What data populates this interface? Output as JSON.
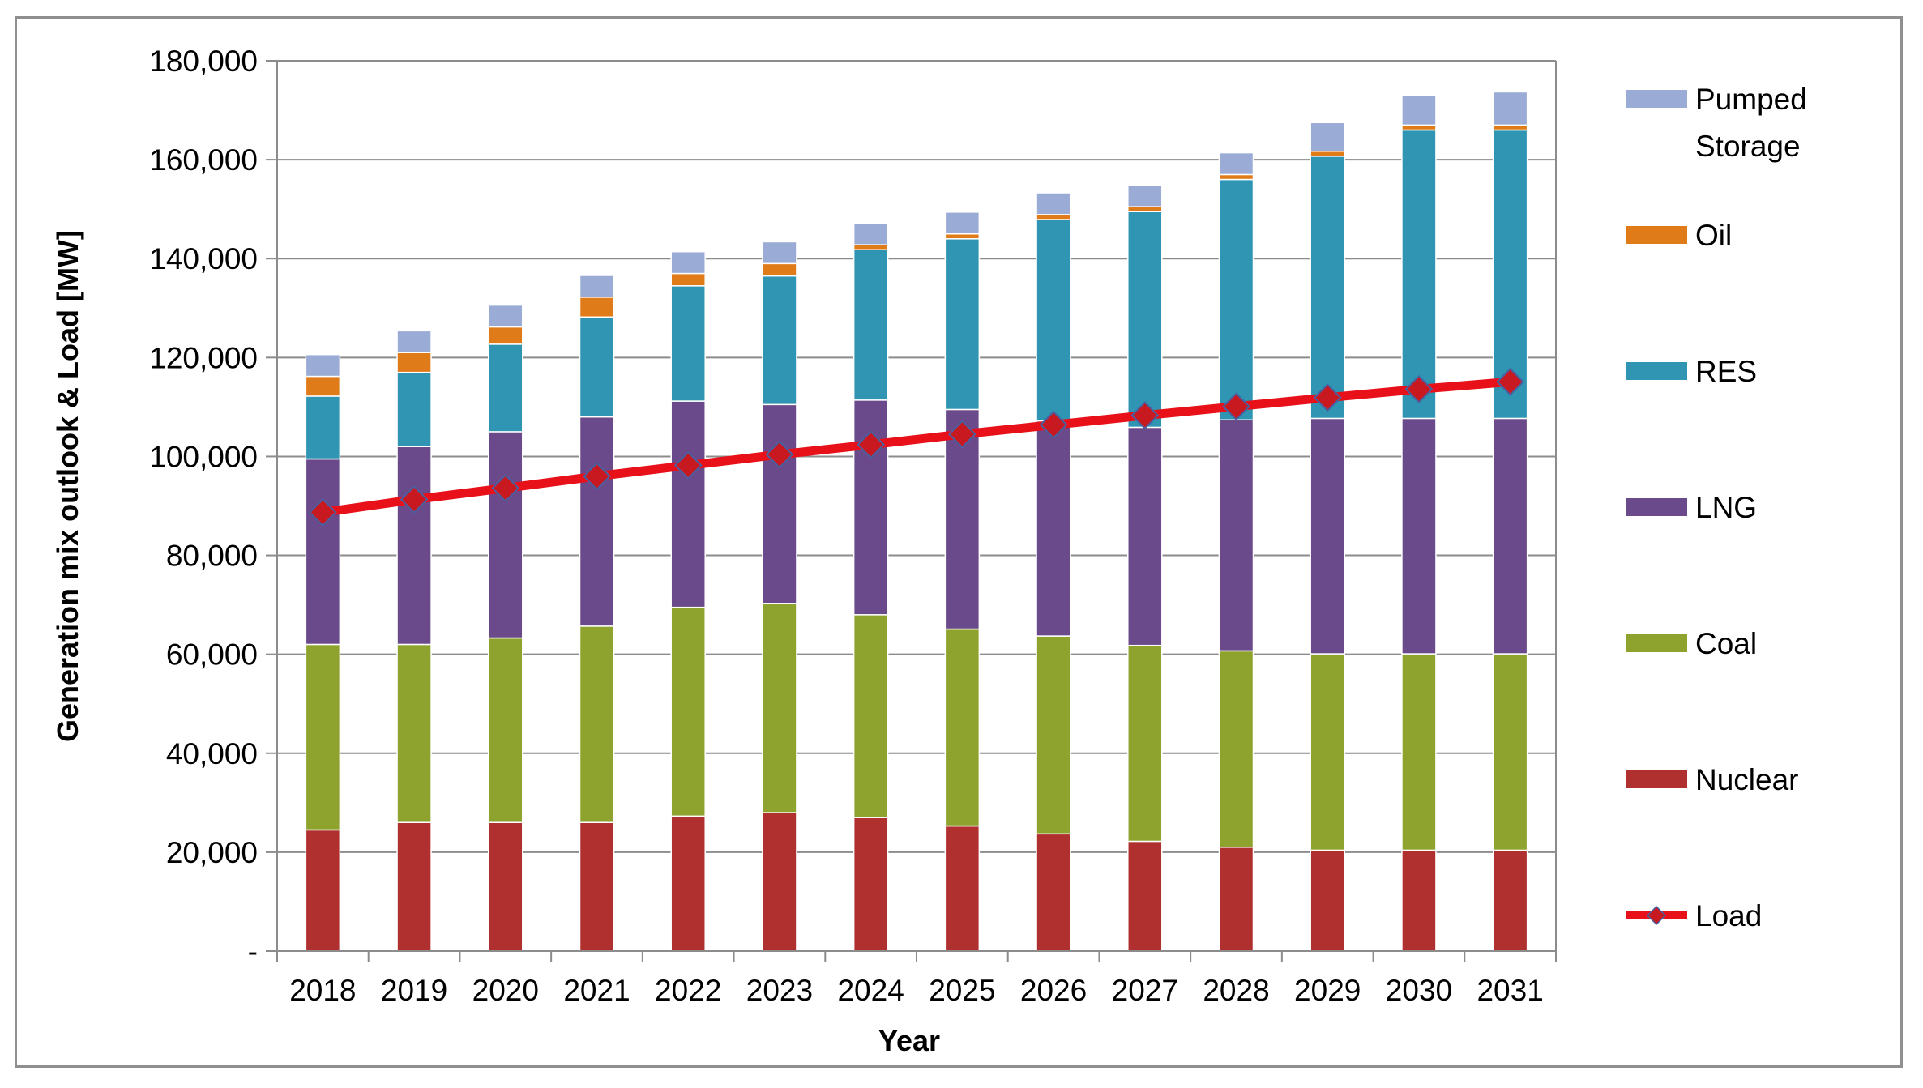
{
  "chart_data": {
    "type": "bar",
    "stacked": true,
    "title": "",
    "xlabel": "Year",
    "ylabel": "Generation  mix outlook & Load [MW]",
    "ylim": [
      0,
      180000
    ],
    "y_ticks": [
      0,
      20000,
      40000,
      60000,
      80000,
      100000,
      120000,
      140000,
      160000,
      180000
    ],
    "y_tick_labels": [
      "-",
      "20,000",
      "40,000",
      "60,000",
      "80,000",
      "100,000",
      "120,000",
      "140,000",
      "160,000",
      "180,000"
    ],
    "grid": true,
    "legend_position": "right",
    "categories": [
      "2018",
      "2019",
      "2020",
      "2021",
      "2022",
      "2023",
      "2024",
      "2025",
      "2026",
      "2027",
      "2028",
      "2029",
      "2030",
      "2031"
    ],
    "series": [
      {
        "name": "Nuclear",
        "color": "#b03030",
        "values": [
          24500,
          26000,
          26000,
          26000,
          27300,
          28000,
          27000,
          25300,
          23700,
          22200,
          21000,
          20400,
          20400,
          20400
        ]
      },
      {
        "name": "Coal",
        "color": "#8ea22e",
        "values": [
          37500,
          36000,
          37300,
          39700,
          42200,
          42300,
          41000,
          39800,
          40000,
          39600,
          39700,
          39700,
          39700,
          39700
        ]
      },
      {
        "name": "LNG",
        "color": "#6a4a8a",
        "values": [
          37500,
          40000,
          41700,
          42300,
          41700,
          40200,
          43400,
          44400,
          43500,
          44100,
          46700,
          47600,
          47600,
          47600
        ]
      },
      {
        "name": "RES",
        "color": "#2f95b3",
        "values": [
          12700,
          15000,
          17700,
          20200,
          23300,
          26000,
          30400,
          34500,
          40700,
          43600,
          48600,
          53000,
          58300,
          58300
        ]
      },
      {
        "name": "Oil",
        "color": "#e07b1a",
        "values": [
          4000,
          4000,
          3500,
          4000,
          2500,
          2500,
          1000,
          1000,
          1000,
          1000,
          1000,
          1000,
          1000,
          1000
        ]
      },
      {
        "name": "Pumped Storage",
        "legend_lines": [
          "Pumped",
          "Storage"
        ],
        "color": "#9aabd6",
        "values": [
          4400,
          4400,
          4400,
          4400,
          4400,
          4400,
          4400,
          4400,
          4400,
          4400,
          4400,
          5800,
          6000,
          6700
        ]
      }
    ],
    "line_series": {
      "name": "Load",
      "color": "#e8111a",
      "marker_color": "#c81820",
      "values": [
        88700,
        91300,
        93600,
        96000,
        98200,
        100400,
        102400,
        104500,
        106400,
        108300,
        110100,
        111900,
        113600,
        115100
      ]
    },
    "legend_order": [
      "Pumped Storage",
      "Oil",
      "RES",
      "LNG",
      "Coal",
      "Nuclear",
      "Load"
    ]
  }
}
